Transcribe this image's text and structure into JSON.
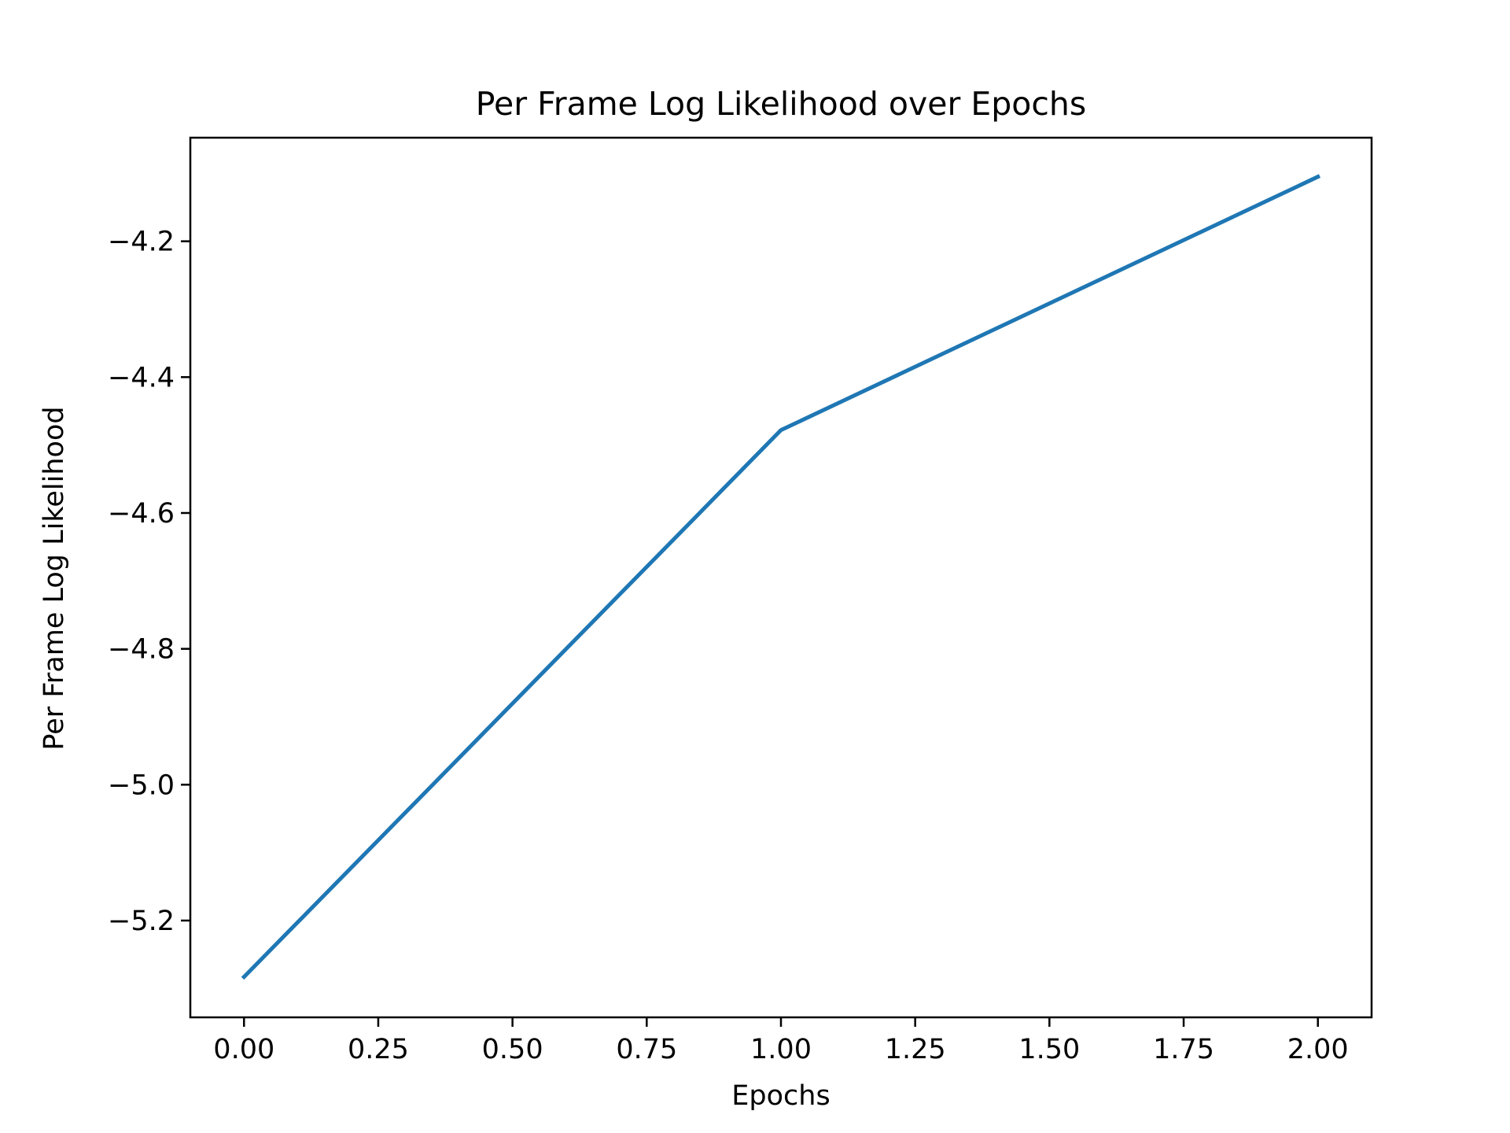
{
  "chart_data": {
    "type": "line",
    "title": "Per Frame Log Likelihood over Epochs",
    "xlabel": "Epochs",
    "ylabel": "Per Frame Log Likelihood",
    "xlim": [
      -0.1,
      2.1
    ],
    "ylim": [
      -5.3425,
      -4.0475
    ],
    "x_ticks": [
      0.0,
      0.25,
      0.5,
      0.75,
      1.0,
      1.25,
      1.5,
      1.75,
      2.0
    ],
    "x_tick_labels": [
      "0.00",
      "0.25",
      "0.50",
      "0.75",
      "1.00",
      "1.25",
      "1.50",
      "1.75",
      "2.00"
    ],
    "y_ticks": [
      -5.2,
      -5.0,
      -4.8,
      -4.6,
      -4.4,
      -4.2
    ],
    "y_tick_labels": [
      "−5.2",
      "−5.0",
      "−4.8",
      "−4.6",
      "−4.4",
      "−4.2"
    ],
    "grid": false,
    "series": [
      {
        "x": [
          0,
          1,
          2
        ],
        "values": [
          -5.283,
          -4.478,
          -4.105
        ],
        "color": "#1f77b4"
      }
    ]
  }
}
